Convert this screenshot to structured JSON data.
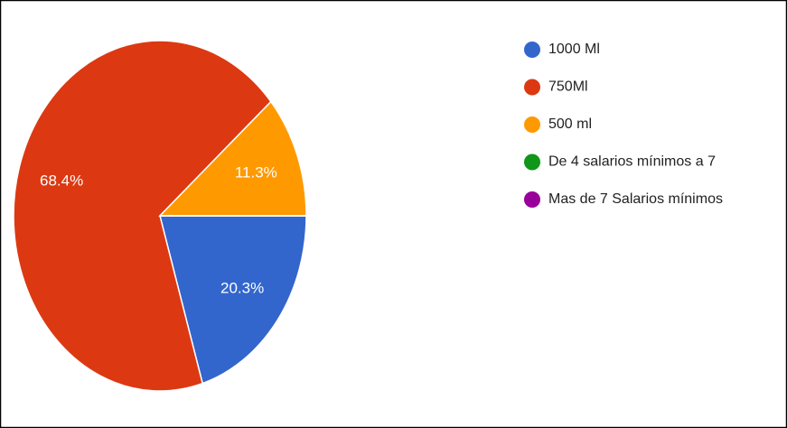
{
  "chart_data": {
    "type": "pie",
    "categories": [
      "1000 Ml",
      "750Ml",
      "500 ml",
      "De 4 salarios mínimos a 7",
      "Mas de 7 Salarios mínimos"
    ],
    "values": [
      20.3,
      68.4,
      11.3,
      0,
      0
    ],
    "value_labels": [
      "20.3%",
      "68.4%",
      "11.3%",
      null,
      null
    ],
    "colors": [
      "#3366cc",
      "#dc3912",
      "#ff9900",
      "#109618",
      "#990099"
    ],
    "legend": "right"
  }
}
